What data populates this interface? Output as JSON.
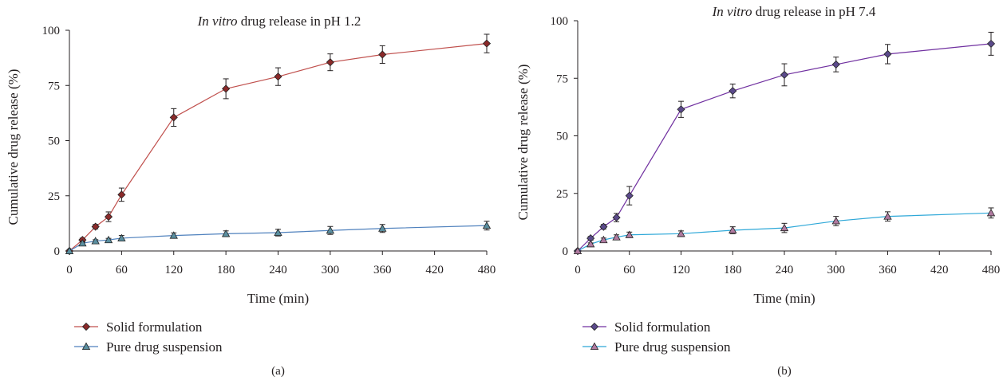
{
  "chart_data": [
    {
      "type": "line",
      "panel_label": "(a)",
      "title_italic": "In vitro",
      "title_rest": " drug release in pH 1.2",
      "xlabel": "Time (min)",
      "ylabel": "Cumulative drug release (%)",
      "xlim": [
        0,
        480
      ],
      "ylim": [
        0,
        100
      ],
      "xticks": [
        0,
        60,
        120,
        180,
        240,
        300,
        360,
        420,
        480
      ],
      "yticks": [
        0,
        25,
        50,
        75,
        100
      ],
      "grid": false,
      "legend_position": "bottom-left",
      "x": [
        0,
        15,
        30,
        45,
        60,
        120,
        180,
        240,
        300,
        360,
        480
      ],
      "series": [
        {
          "name": "Solid formulation",
          "marker": "diamond",
          "line_color": "#c0504d",
          "marker_color": "#8b2a2a",
          "values": [
            0,
            5,
            11,
            15.5,
            25.5,
            60.5,
            73.5,
            79,
            85.5,
            89,
            94
          ],
          "errors": [
            0,
            0.8,
            1,
            2.2,
            3,
            4,
            4.5,
            4,
            3.8,
            4,
            4.2
          ]
        },
        {
          "name": "Pure drug suspension",
          "marker": "triangle",
          "line_color": "#4f81bd",
          "marker_color": "#5a8fa0",
          "values": [
            0,
            3.5,
            4.5,
            5,
            5.8,
            7,
            7.8,
            8.3,
            9.3,
            10.2,
            11.5
          ],
          "errors": [
            0,
            0.5,
            0.6,
            0.7,
            1.2,
            1.2,
            1.3,
            1.5,
            1.8,
            1.8,
            2
          ]
        }
      ]
    },
    {
      "type": "line",
      "panel_label": "(b)",
      "title_italic": "In vitro",
      "title_rest": " drug release in pH 7.4",
      "xlabel": "Time (min)",
      "ylabel": "Cumulative drug release (%)",
      "xlim": [
        0,
        480
      ],
      "ylim": [
        0,
        100
      ],
      "xticks": [
        0,
        60,
        120,
        180,
        240,
        300,
        360,
        420,
        480
      ],
      "yticks": [
        0,
        25,
        50,
        75,
        100
      ],
      "grid": false,
      "legend_position": "bottom-left",
      "x": [
        0,
        15,
        30,
        45,
        60,
        120,
        180,
        240,
        300,
        360,
        480
      ],
      "series": [
        {
          "name": "Solid formulation",
          "marker": "diamond",
          "line_color": "#7030a0",
          "marker_color": "#5b4a8b",
          "values": [
            0,
            5.5,
            10.5,
            14.5,
            24,
            61.5,
            69.5,
            76.5,
            81,
            85.5,
            90
          ],
          "errors": [
            0,
            0.8,
            1,
            1.8,
            4,
            3.5,
            3,
            4.8,
            3.2,
            4.2,
            5
          ]
        },
        {
          "name": "Pure drug suspension",
          "marker": "triangle",
          "line_color": "#2ea8d8",
          "marker_color": "#b07aa0",
          "values": [
            0,
            3,
            4.8,
            6,
            7,
            7.5,
            9,
            10,
            13,
            15,
            16.5
          ],
          "errors": [
            0,
            0.5,
            0.8,
            1,
            1.2,
            1.2,
            1.5,
            2,
            2,
            2,
            2.2
          ]
        }
      ]
    }
  ]
}
